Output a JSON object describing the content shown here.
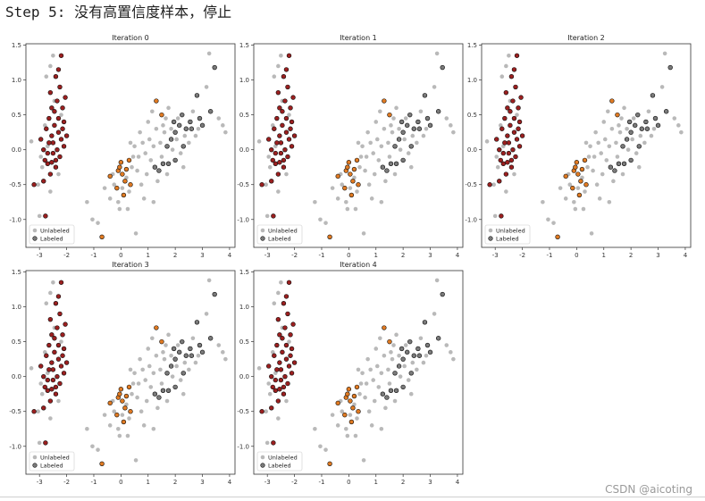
{
  "heading": "Step 5: 没有高置信度样本，停止",
  "watermark": "CSDN @aicoting",
  "colors": {
    "unlabeled": "#b9b9b9",
    "cluster_a": "#9b1f1f",
    "cluster_b": "#e07a22",
    "cluster_c": "#7a7a7a",
    "marker_edge": "#111111"
  },
  "chart_data": [
    {
      "type": "scatter",
      "title": "Iteration 0",
      "xlim": [
        -3.5,
        4.2
      ],
      "ylim": [
        -1.4,
        1.52
      ],
      "xticks": [
        "-3",
        "-2",
        "-1",
        "0",
        "1",
        "2",
        "3",
        "4"
      ],
      "yticks": [
        "1.5",
        "1.0",
        "0.5",
        "0.0",
        "-0.5",
        "-1.0"
      ],
      "legend": {
        "position": "lower-left",
        "entries": [
          "Unlabeled",
          "Labeled"
        ]
      }
    },
    {
      "type": "scatter",
      "title": "Iteration 1",
      "xlim": [
        -3.5,
        4.2
      ],
      "ylim": [
        -1.4,
        1.52
      ],
      "xticks": [
        "-3",
        "-2",
        "-1",
        "0",
        "1",
        "2",
        "3",
        "4"
      ],
      "yticks": [
        "1.5",
        "1.0",
        "0.5",
        "0.0",
        "-0.5",
        "-1.0"
      ],
      "legend": {
        "position": "lower-left",
        "entries": [
          "Unlabeled",
          "Labeled"
        ]
      }
    },
    {
      "type": "scatter",
      "title": "Iteration 2",
      "xlim": [
        -3.5,
        4.2
      ],
      "ylim": [
        -1.4,
        1.52
      ],
      "xticks": [
        "-3",
        "-2",
        "-1",
        "0",
        "1",
        "2",
        "3",
        "4"
      ],
      "yticks": [
        "1.5",
        "1.0",
        "0.5",
        "0.0",
        "-0.5",
        "-1.0"
      ],
      "legend": {
        "position": "lower-left",
        "entries": [
          "Unlabeled",
          "Labeled"
        ]
      }
    },
    {
      "type": "scatter",
      "title": "Iteration 3",
      "xlim": [
        -3.5,
        4.2
      ],
      "ylim": [
        -1.4,
        1.52
      ],
      "xticks": [
        "-3",
        "-2",
        "-1",
        "0",
        "1",
        "2",
        "3",
        "4"
      ],
      "yticks": [
        "1.5",
        "1.0",
        "0.5",
        "0.0",
        "-0.5",
        "-1.0"
      ],
      "legend": {
        "position": "lower-left",
        "entries": [
          "Unlabeled",
          "Labeled"
        ]
      }
    },
    {
      "type": "scatter",
      "title": "Iteration 4",
      "xlim": [
        -3.5,
        4.2
      ],
      "ylim": [
        -1.4,
        1.52
      ],
      "xticks": [
        "-3",
        "-2",
        "-1",
        "0",
        "1",
        "2",
        "3",
        "4"
      ],
      "yticks": [
        "1.5",
        "1.0",
        "0.5",
        "0.0",
        "-0.5",
        "-1.0"
      ],
      "legend": {
        "position": "lower-left",
        "entries": [
          "Unlabeled",
          "Labeled"
        ]
      }
    }
  ],
  "points": {
    "cluster_a": [
      [
        -2.95,
        0.15
      ],
      [
        -2.85,
        0.0
      ],
      [
        -2.8,
        -0.15
      ],
      [
        -2.75,
        0.3
      ],
      [
        -2.7,
        -0.2
      ],
      [
        -2.65,
        0.45
      ],
      [
        -2.6,
        0.82
      ],
      [
        -2.6,
        -0.35
      ],
      [
        -2.55,
        0.2
      ],
      [
        -2.55,
        0.6
      ],
      [
        -2.5,
        -0.05
      ],
      [
        -2.5,
        0.1
      ],
      [
        -2.45,
        0.35
      ],
      [
        -2.45,
        0.55
      ],
      [
        -2.4,
        1.05
      ],
      [
        -2.4,
        -0.25
      ],
      [
        -2.35,
        0.7
      ],
      [
        -2.3,
        0.25
      ],
      [
        -2.3,
        0.45
      ],
      [
        -2.25,
        0.9
      ],
      [
        -2.25,
        -0.1
      ],
      [
        -2.2,
        0.15
      ],
      [
        -2.2,
        1.35
      ],
      [
        -2.15,
        0.6
      ],
      [
        -2.1,
        0.05
      ],
      [
        -2.1,
        0.4
      ],
      [
        -2.05,
        0.75
      ],
      [
        -2.0,
        0.2
      ],
      [
        -2.7,
        -0.05
      ],
      [
        -2.65,
        0.1
      ],
      [
        -2.4,
        -0.15
      ],
      [
        -2.35,
        0.0
      ],
      [
        -2.85,
        -0.45
      ],
      [
        -3.2,
        -0.5
      ],
      [
        -2.78,
        -0.95
      ],
      [
        -2.55,
        -0.18
      ],
      [
        -2.3,
        1.15
      ],
      [
        -2.15,
        0.3
      ]
    ],
    "cluster_b": [
      [
        -0.7,
        -1.25
      ],
      [
        -0.4,
        -0.38
      ],
      [
        -0.1,
        -0.3
      ],
      [
        -0.05,
        -0.25
      ],
      [
        0.05,
        -0.35
      ],
      [
        0.2,
        -0.28
      ],
      [
        0.3,
        -0.15
      ],
      [
        -0.15,
        -0.55
      ],
      [
        0.1,
        -0.65
      ],
      [
        0.15,
        -0.45
      ],
      [
        1.3,
        0.7
      ],
      [
        1.5,
        0.5
      ],
      [
        0.35,
        -0.5
      ],
      [
        0.0,
        -0.18
      ]
    ],
    "cluster_c": [
      [
        3.45,
        1.18
      ],
      [
        3.3,
        0.55
      ],
      [
        2.8,
        0.78
      ],
      [
        2.55,
        0.4
      ],
      [
        2.4,
        0.3
      ],
      [
        2.25,
        0.5
      ],
      [
        2.15,
        0.35
      ],
      [
        2.0,
        0.25
      ],
      [
        1.85,
        0.15
      ],
      [
        1.95,
        0.4
      ],
      [
        1.7,
        0.05
      ],
      [
        1.55,
        -0.2
      ],
      [
        1.4,
        -0.3
      ],
      [
        1.25,
        -0.25
      ],
      [
        2.6,
        0.3
      ],
      [
        2.3,
        0.05
      ],
      [
        2.0,
        -0.15
      ],
      [
        1.75,
        -0.2
      ],
      [
        2.9,
        0.45
      ],
      [
        3.0,
        0.35
      ]
    ],
    "unlabeled": [
      [
        -3.3,
        0.12
      ],
      [
        -3.05,
        -0.5
      ],
      [
        -3.0,
        -0.95
      ],
      [
        -2.9,
        -0.25
      ],
      [
        -2.8,
        0.35
      ],
      [
        -2.75,
        1.05
      ],
      [
        -2.7,
        0.05
      ],
      [
        -2.6,
        1.2
      ],
      [
        -2.5,
        1.35
      ],
      [
        -2.45,
        0.7
      ],
      [
        -2.3,
        -0.35
      ],
      [
        -2.2,
        0.5
      ],
      [
        -2.6,
        -0.6
      ],
      [
        -2.95,
        -0.1
      ],
      [
        -1.25,
        -0.75
      ],
      [
        -1.05,
        -1.0
      ],
      [
        -0.85,
        -1.05
      ],
      [
        -0.6,
        -0.55
      ],
      [
        -0.4,
        -0.7
      ],
      [
        -0.25,
        -0.5
      ],
      [
        -0.1,
        -0.75
      ],
      [
        0.05,
        -0.55
      ],
      [
        0.2,
        -0.4
      ],
      [
        0.3,
        -0.6
      ],
      [
        0.4,
        -0.25
      ],
      [
        0.45,
        -0.1
      ],
      [
        0.5,
        0.05
      ],
      [
        0.6,
        -0.3
      ],
      [
        0.7,
        0.25
      ],
      [
        0.75,
        -0.5
      ],
      [
        0.8,
        0.1
      ],
      [
        0.9,
        -0.05
      ],
      [
        0.95,
        -0.35
      ],
      [
        1.0,
        0.4
      ],
      [
        1.05,
        0.15
      ],
      [
        1.1,
        -0.15
      ],
      [
        1.15,
        0.55
      ],
      [
        1.2,
        0.05
      ],
      [
        1.3,
        0.3
      ],
      [
        1.35,
        -0.45
      ],
      [
        1.45,
        0.1
      ],
      [
        1.5,
        -0.1
      ],
      [
        1.6,
        0.25
      ],
      [
        1.65,
        0.45
      ],
      [
        1.75,
        0.6
      ],
      [
        1.85,
        0.3
      ],
      [
        1.9,
        0.0
      ],
      [
        2.05,
        0.15
      ],
      [
        2.1,
        0.45
      ],
      [
        2.2,
        -0.05
      ],
      [
        2.35,
        0.2
      ],
      [
        2.5,
        0.1
      ],
      [
        2.65,
        0.55
      ],
      [
        2.75,
        0.2
      ],
      [
        2.85,
        0.3
      ],
      [
        3.15,
        0.9
      ],
      [
        3.25,
        1.38
      ],
      [
        3.6,
        0.45
      ],
      [
        3.75,
        0.35
      ],
      [
        3.85,
        0.25
      ],
      [
        0.55,
        -1.2
      ],
      [
        -0.05,
        -0.85
      ],
      [
        0.85,
        -0.7
      ],
      [
        1.2,
        -0.75
      ],
      [
        0.65,
        -0.1
      ],
      [
        0.35,
        0.1
      ],
      [
        1.55,
        0.35
      ],
      [
        2.3,
        -0.25
      ],
      [
        1.7,
        -0.35
      ],
      [
        0.25,
        -0.85
      ],
      [
        -0.3,
        -0.35
      ]
    ]
  }
}
